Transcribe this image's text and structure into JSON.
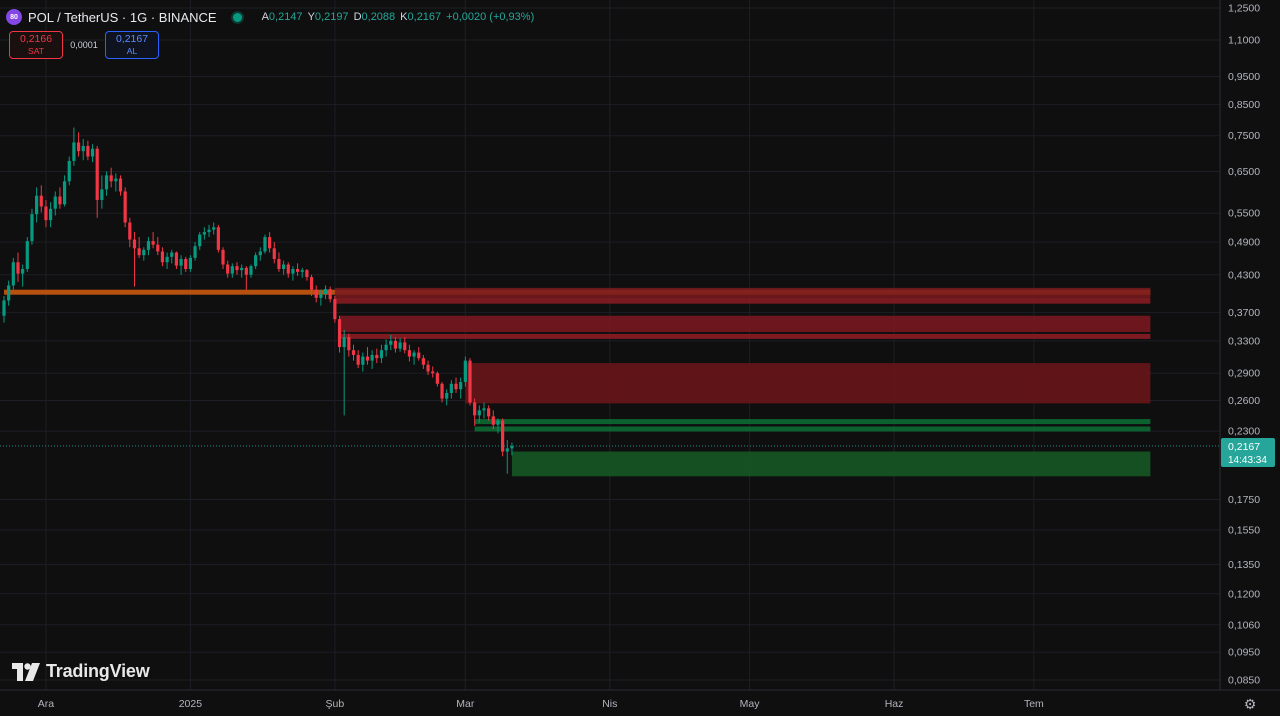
{
  "header": {
    "symbol_logo_text": "80",
    "title": "POL / TetherUS · 1G · BINANCE",
    "ohlc": {
      "open_label": "A",
      "open": "0,2147",
      "high_label": "Y",
      "high": "0,2197",
      "low_label": "D",
      "low": "0,2088",
      "close_label": "K",
      "close": "0,2167",
      "change": "+0,0020 (+0,93%)"
    }
  },
  "trade": {
    "sell_price": "0,2166",
    "sell_label": "SAT",
    "spread": "0,0001",
    "buy_price": "0,2167",
    "buy_label": "AL"
  },
  "brand": {
    "name": "TradingView"
  },
  "chart_data": {
    "type": "candlestick",
    "y_scale": "log",
    "ylim": [
      0.08,
      1.3
    ],
    "y_ticks": [
      {
        "v": 1.25,
        "label": "1,2500"
      },
      {
        "v": 1.1,
        "label": "1,1000"
      },
      {
        "v": 0.95,
        "label": "0,9500"
      },
      {
        "v": 0.85,
        "label": "0,8500"
      },
      {
        "v": 0.75,
        "label": "0,7500"
      },
      {
        "v": 0.65,
        "label": "0,6500"
      },
      {
        "v": 0.55,
        "label": "0,5500"
      },
      {
        "v": 0.49,
        "label": "0,4900"
      },
      {
        "v": 0.43,
        "label": "0,4300"
      },
      {
        "v": 0.37,
        "label": "0,3700"
      },
      {
        "v": 0.33,
        "label": "0,3300"
      },
      {
        "v": 0.29,
        "label": "0,2900"
      },
      {
        "v": 0.26,
        "label": "0,2600"
      },
      {
        "v": 0.23,
        "label": "0,2300"
      },
      {
        "v": 0.175,
        "label": "0,1750"
      },
      {
        "v": 0.155,
        "label": "0,1550"
      },
      {
        "v": 0.135,
        "label": "0,1350"
      },
      {
        "v": 0.12,
        "label": "0,1200"
      },
      {
        "v": 0.106,
        "label": "0,1060"
      },
      {
        "v": 0.095,
        "label": "0,0950"
      },
      {
        "v": 0.085,
        "label": "0,0850"
      }
    ],
    "x_ticks": [
      {
        "date": "2024-12-01",
        "label": "Ara"
      },
      {
        "date": "2025-01-01",
        "label": "2025"
      },
      {
        "date": "2025-02-01",
        "label": "Şub"
      },
      {
        "date": "2025-03-01",
        "label": "Mar"
      },
      {
        "date": "2025-04-01",
        "label": "Nis"
      },
      {
        "date": "2025-05-01",
        "label": "May"
      },
      {
        "date": "2025-06-01",
        "label": "Haz"
      },
      {
        "date": "2025-07-01",
        "label": "Tem"
      }
    ],
    "x_range": [
      "2024-11-22",
      "2025-07-31"
    ],
    "last_price": {
      "value": 0.2167,
      "label": "0,2167",
      "countdown": "14:43:34"
    },
    "colors": {
      "up": "#089981",
      "down": "#f23645",
      "last": "#26a69a"
    },
    "zones": [
      {
        "kind": "line",
        "from": "2024-11-22",
        "to": "2025-07-26",
        "y": 0.401,
        "color": "#c8580f"
      },
      {
        "kind": "box",
        "from": "2025-02-01",
        "to": "2025-07-26",
        "top": 0.408,
        "bottom": 0.392,
        "color": "#7a1a1f"
      },
      {
        "kind": "box",
        "from": "2025-02-01",
        "to": "2025-07-26",
        "top": 0.392,
        "bottom": 0.383,
        "color": "#8c1c23"
      },
      {
        "kind": "box",
        "from": "2025-02-02",
        "to": "2025-07-26",
        "top": 0.365,
        "bottom": 0.342,
        "color": "#7f1820"
      },
      {
        "kind": "line",
        "from": "2025-02-02",
        "to": "2025-07-26",
        "y": 0.336,
        "color": "#8c1c23"
      },
      {
        "kind": "box",
        "from": "2025-03-01",
        "to": "2025-07-26",
        "top": 0.302,
        "bottom": 0.257,
        "color": "#6d1519"
      },
      {
        "kind": "line",
        "from": "2025-03-03",
        "to": "2025-07-26",
        "y": 0.239,
        "color": "#0b6b33"
      },
      {
        "kind": "line",
        "from": "2025-03-03",
        "to": "2025-07-26",
        "y": 0.232,
        "color": "#0b6b33"
      },
      {
        "kind": "box",
        "from": "2025-03-11",
        "to": "2025-07-26",
        "top": 0.212,
        "bottom": 0.192,
        "color": "#155c25"
      }
    ],
    "candles": [
      {
        "d": "2024-11-22",
        "o": 0.365,
        "h": 0.395,
        "l": 0.355,
        "c": 0.388
      },
      {
        "d": "2024-11-23",
        "o": 0.388,
        "h": 0.42,
        "l": 0.38,
        "c": 0.412
      },
      {
        "d": "2024-11-24",
        "o": 0.412,
        "h": 0.46,
        "l": 0.405,
        "c": 0.452
      },
      {
        "d": "2024-11-25",
        "o": 0.452,
        "h": 0.47,
        "l": 0.418,
        "c": 0.432
      },
      {
        "d": "2024-11-26",
        "o": 0.432,
        "h": 0.448,
        "l": 0.41,
        "c": 0.44
      },
      {
        "d": "2024-11-27",
        "o": 0.44,
        "h": 0.5,
        "l": 0.435,
        "c": 0.492
      },
      {
        "d": "2024-11-28",
        "o": 0.492,
        "h": 0.56,
        "l": 0.485,
        "c": 0.548
      },
      {
        "d": "2024-11-29",
        "o": 0.548,
        "h": 0.61,
        "l": 0.53,
        "c": 0.59
      },
      {
        "d": "2024-11-30",
        "o": 0.59,
        "h": 0.615,
        "l": 0.552,
        "c": 0.565
      },
      {
        "d": "2024-12-01",
        "o": 0.565,
        "h": 0.58,
        "l": 0.52,
        "c": 0.535
      },
      {
        "d": "2024-12-02",
        "o": 0.535,
        "h": 0.575,
        "l": 0.52,
        "c": 0.56
      },
      {
        "d": "2024-12-03",
        "o": 0.56,
        "h": 0.6,
        "l": 0.545,
        "c": 0.588
      },
      {
        "d": "2024-12-04",
        "o": 0.588,
        "h": 0.61,
        "l": 0.56,
        "c": 0.57
      },
      {
        "d": "2024-12-05",
        "o": 0.57,
        "h": 0.64,
        "l": 0.565,
        "c": 0.625
      },
      {
        "d": "2024-12-06",
        "o": 0.625,
        "h": 0.69,
        "l": 0.615,
        "c": 0.678
      },
      {
        "d": "2024-12-07",
        "o": 0.678,
        "h": 0.775,
        "l": 0.665,
        "c": 0.73
      },
      {
        "d": "2024-12-08",
        "o": 0.73,
        "h": 0.76,
        "l": 0.69,
        "c": 0.705
      },
      {
        "d": "2024-12-09",
        "o": 0.705,
        "h": 0.74,
        "l": 0.68,
        "c": 0.72
      },
      {
        "d": "2024-12-10",
        "o": 0.72,
        "h": 0.735,
        "l": 0.68,
        "c": 0.69
      },
      {
        "d": "2024-12-11",
        "o": 0.69,
        "h": 0.725,
        "l": 0.675,
        "c": 0.712
      },
      {
        "d": "2024-12-12",
        "o": 0.712,
        "h": 0.72,
        "l": 0.54,
        "c": 0.58
      },
      {
        "d": "2024-12-13",
        "o": 0.58,
        "h": 0.64,
        "l": 0.56,
        "c": 0.605
      },
      {
        "d": "2024-12-14",
        "o": 0.605,
        "h": 0.65,
        "l": 0.59,
        "c": 0.64
      },
      {
        "d": "2024-12-15",
        "o": 0.64,
        "h": 0.66,
        "l": 0.61,
        "c": 0.625
      },
      {
        "d": "2024-12-16",
        "o": 0.625,
        "h": 0.645,
        "l": 0.6,
        "c": 0.632
      },
      {
        "d": "2024-12-17",
        "o": 0.632,
        "h": 0.64,
        "l": 0.59,
        "c": 0.6
      },
      {
        "d": "2024-12-18",
        "o": 0.6,
        "h": 0.61,
        "l": 0.52,
        "c": 0.53
      },
      {
        "d": "2024-12-19",
        "o": 0.53,
        "h": 0.54,
        "l": 0.48,
        "c": 0.495
      },
      {
        "d": "2024-12-20",
        "o": 0.495,
        "h": 0.51,
        "l": 0.41,
        "c": 0.478
      },
      {
        "d": "2024-12-21",
        "o": 0.478,
        "h": 0.5,
        "l": 0.46,
        "c": 0.465
      },
      {
        "d": "2024-12-22",
        "o": 0.465,
        "h": 0.48,
        "l": 0.455,
        "c": 0.475
      },
      {
        "d": "2024-12-23",
        "o": 0.475,
        "h": 0.5,
        "l": 0.465,
        "c": 0.492
      },
      {
        "d": "2024-12-24",
        "o": 0.492,
        "h": 0.51,
        "l": 0.478,
        "c": 0.485
      },
      {
        "d": "2024-12-25",
        "o": 0.485,
        "h": 0.5,
        "l": 0.465,
        "c": 0.472
      },
      {
        "d": "2024-12-26",
        "o": 0.472,
        "h": 0.48,
        "l": 0.445,
        "c": 0.452
      },
      {
        "d": "2024-12-27",
        "o": 0.452,
        "h": 0.47,
        "l": 0.44,
        "c": 0.462
      },
      {
        "d": "2024-12-28",
        "o": 0.462,
        "h": 0.475,
        "l": 0.45,
        "c": 0.47
      },
      {
        "d": "2024-12-29",
        "o": 0.47,
        "h": 0.472,
        "l": 0.44,
        "c": 0.446
      },
      {
        "d": "2024-12-30",
        "o": 0.446,
        "h": 0.465,
        "l": 0.43,
        "c": 0.458
      },
      {
        "d": "2024-12-31",
        "o": 0.458,
        "h": 0.462,
        "l": 0.435,
        "c": 0.44
      },
      {
        "d": "2025-01-01",
        "o": 0.44,
        "h": 0.465,
        "l": 0.435,
        "c": 0.46
      },
      {
        "d": "2025-01-02",
        "o": 0.46,
        "h": 0.49,
        "l": 0.455,
        "c": 0.482
      },
      {
        "d": "2025-01-03",
        "o": 0.482,
        "h": 0.51,
        "l": 0.475,
        "c": 0.505
      },
      {
        "d": "2025-01-04",
        "o": 0.505,
        "h": 0.52,
        "l": 0.495,
        "c": 0.51
      },
      {
        "d": "2025-01-05",
        "o": 0.51,
        "h": 0.525,
        "l": 0.5,
        "c": 0.515
      },
      {
        "d": "2025-01-06",
        "o": 0.515,
        "h": 0.53,
        "l": 0.505,
        "c": 0.52
      },
      {
        "d": "2025-01-07",
        "o": 0.52,
        "h": 0.525,
        "l": 0.47,
        "c": 0.475
      },
      {
        "d": "2025-01-08",
        "o": 0.475,
        "h": 0.48,
        "l": 0.44,
        "c": 0.448
      },
      {
        "d": "2025-01-09",
        "o": 0.448,
        "h": 0.455,
        "l": 0.425,
        "c": 0.432
      },
      {
        "d": "2025-01-10",
        "o": 0.432,
        "h": 0.45,
        "l": 0.425,
        "c": 0.445
      },
      {
        "d": "2025-01-11",
        "o": 0.445,
        "h": 0.452,
        "l": 0.43,
        "c": 0.438
      },
      {
        "d": "2025-01-12",
        "o": 0.438,
        "h": 0.448,
        "l": 0.425,
        "c": 0.442
      },
      {
        "d": "2025-01-13",
        "o": 0.442,
        "h": 0.445,
        "l": 0.405,
        "c": 0.43
      },
      {
        "d": "2025-01-14",
        "o": 0.43,
        "h": 0.448,
        "l": 0.425,
        "c": 0.445
      },
      {
        "d": "2025-01-15",
        "o": 0.445,
        "h": 0.47,
        "l": 0.44,
        "c": 0.465
      },
      {
        "d": "2025-01-16",
        "o": 0.465,
        "h": 0.48,
        "l": 0.455,
        "c": 0.472
      },
      {
        "d": "2025-01-17",
        "o": 0.472,
        "h": 0.505,
        "l": 0.468,
        "c": 0.5
      },
      {
        "d": "2025-01-18",
        "o": 0.5,
        "h": 0.51,
        "l": 0.47,
        "c": 0.478
      },
      {
        "d": "2025-01-19",
        "o": 0.478,
        "h": 0.49,
        "l": 0.45,
        "c": 0.458
      },
      {
        "d": "2025-01-20",
        "o": 0.458,
        "h": 0.47,
        "l": 0.435,
        "c": 0.44
      },
      {
        "d": "2025-01-21",
        "o": 0.44,
        "h": 0.455,
        "l": 0.43,
        "c": 0.448
      },
      {
        "d": "2025-01-22",
        "o": 0.448,
        "h": 0.452,
        "l": 0.425,
        "c": 0.432
      },
      {
        "d": "2025-01-23",
        "o": 0.432,
        "h": 0.445,
        "l": 0.42,
        "c": 0.44
      },
      {
        "d": "2025-01-24",
        "o": 0.44,
        "h": 0.45,
        "l": 0.428,
        "c": 0.435
      },
      {
        "d": "2025-01-25",
        "o": 0.435,
        "h": 0.442,
        "l": 0.425,
        "c": 0.438
      },
      {
        "d": "2025-01-26",
        "o": 0.438,
        "h": 0.44,
        "l": 0.42,
        "c": 0.426
      },
      {
        "d": "2025-01-27",
        "o": 0.426,
        "h": 0.43,
        "l": 0.395,
        "c": 0.405
      },
      {
        "d": "2025-01-28",
        "o": 0.405,
        "h": 0.412,
        "l": 0.385,
        "c": 0.392
      },
      {
        "d": "2025-01-29",
        "o": 0.392,
        "h": 0.405,
        "l": 0.38,
        "c": 0.398
      },
      {
        "d": "2025-01-30",
        "o": 0.398,
        "h": 0.412,
        "l": 0.39,
        "c": 0.406
      },
      {
        "d": "2025-01-31",
        "o": 0.406,
        "h": 0.41,
        "l": 0.385,
        "c": 0.39
      },
      {
        "d": "2025-02-01",
        "o": 0.39,
        "h": 0.395,
        "l": 0.355,
        "c": 0.36
      },
      {
        "d": "2025-02-02",
        "o": 0.36,
        "h": 0.365,
        "l": 0.315,
        "c": 0.322
      },
      {
        "d": "2025-02-03",
        "o": 0.322,
        "h": 0.345,
        "l": 0.245,
        "c": 0.335
      },
      {
        "d": "2025-02-04",
        "o": 0.335,
        "h": 0.34,
        "l": 0.31,
        "c": 0.318
      },
      {
        "d": "2025-02-05",
        "o": 0.318,
        "h": 0.325,
        "l": 0.305,
        "c": 0.312
      },
      {
        "d": "2025-02-06",
        "o": 0.312,
        "h": 0.318,
        "l": 0.296,
        "c": 0.3
      },
      {
        "d": "2025-02-07",
        "o": 0.3,
        "h": 0.315,
        "l": 0.292,
        "c": 0.31
      },
      {
        "d": "2025-02-08",
        "o": 0.31,
        "h": 0.322,
        "l": 0.3,
        "c": 0.305
      },
      {
        "d": "2025-02-09",
        "o": 0.305,
        "h": 0.318,
        "l": 0.295,
        "c": 0.312
      },
      {
        "d": "2025-02-10",
        "o": 0.312,
        "h": 0.32,
        "l": 0.302,
        "c": 0.308
      },
      {
        "d": "2025-02-11",
        "o": 0.308,
        "h": 0.325,
        "l": 0.302,
        "c": 0.318
      },
      {
        "d": "2025-02-12",
        "o": 0.318,
        "h": 0.332,
        "l": 0.31,
        "c": 0.325
      },
      {
        "d": "2025-02-13",
        "o": 0.325,
        "h": 0.338,
        "l": 0.318,
        "c": 0.33
      },
      {
        "d": "2025-02-14",
        "o": 0.33,
        "h": 0.335,
        "l": 0.315,
        "c": 0.32
      },
      {
        "d": "2025-02-15",
        "o": 0.32,
        "h": 0.334,
        "l": 0.316,
        "c": 0.328
      },
      {
        "d": "2025-02-16",
        "o": 0.328,
        "h": 0.335,
        "l": 0.314,
        "c": 0.318
      },
      {
        "d": "2025-02-17",
        "o": 0.318,
        "h": 0.325,
        "l": 0.304,
        "c": 0.31
      },
      {
        "d": "2025-02-18",
        "o": 0.31,
        "h": 0.318,
        "l": 0.3,
        "c": 0.315
      },
      {
        "d": "2025-02-19",
        "o": 0.315,
        "h": 0.322,
        "l": 0.305,
        "c": 0.308
      },
      {
        "d": "2025-02-20",
        "o": 0.308,
        "h": 0.312,
        "l": 0.295,
        "c": 0.3
      },
      {
        "d": "2025-02-21",
        "o": 0.3,
        "h": 0.305,
        "l": 0.288,
        "c": 0.292
      },
      {
        "d": "2025-02-22",
        "o": 0.292,
        "h": 0.298,
        "l": 0.285,
        "c": 0.29
      },
      {
        "d": "2025-02-23",
        "o": 0.29,
        "h": 0.292,
        "l": 0.275,
        "c": 0.278
      },
      {
        "d": "2025-02-24",
        "o": 0.278,
        "h": 0.28,
        "l": 0.258,
        "c": 0.262
      },
      {
        "d": "2025-02-25",
        "o": 0.262,
        "h": 0.272,
        "l": 0.255,
        "c": 0.268
      },
      {
        "d": "2025-02-26",
        "o": 0.268,
        "h": 0.282,
        "l": 0.262,
        "c": 0.278
      },
      {
        "d": "2025-02-27",
        "o": 0.278,
        "h": 0.285,
        "l": 0.268,
        "c": 0.272
      },
      {
        "d": "2025-02-28",
        "o": 0.272,
        "h": 0.285,
        "l": 0.262,
        "c": 0.28
      },
      {
        "d": "2025-03-01",
        "o": 0.28,
        "h": 0.31,
        "l": 0.275,
        "c": 0.305
      },
      {
        "d": "2025-03-02",
        "o": 0.305,
        "h": 0.308,
        "l": 0.255,
        "c": 0.258
      },
      {
        "d": "2025-03-03",
        "o": 0.258,
        "h": 0.262,
        "l": 0.235,
        "c": 0.245
      },
      {
        "d": "2025-03-04",
        "o": 0.245,
        "h": 0.255,
        "l": 0.238,
        "c": 0.25
      },
      {
        "d": "2025-03-05",
        "o": 0.25,
        "h": 0.258,
        "l": 0.242,
        "c": 0.252
      },
      {
        "d": "2025-03-06",
        "o": 0.252,
        "h": 0.255,
        "l": 0.24,
        "c": 0.244
      },
      {
        "d": "2025-03-07",
        "o": 0.244,
        "h": 0.25,
        "l": 0.232,
        "c": 0.236
      },
      {
        "d": "2025-03-08",
        "o": 0.236,
        "h": 0.242,
        "l": 0.228,
        "c": 0.24
      },
      {
        "d": "2025-03-09",
        "o": 0.24,
        "h": 0.242,
        "l": 0.208,
        "c": 0.212
      },
      {
        "d": "2025-03-10",
        "o": 0.212,
        "h": 0.222,
        "l": 0.194,
        "c": 0.2147
      },
      {
        "d": "2025-03-11",
        "o": 0.2147,
        "h": 0.2197,
        "l": 0.2088,
        "c": 0.2167
      }
    ]
  }
}
